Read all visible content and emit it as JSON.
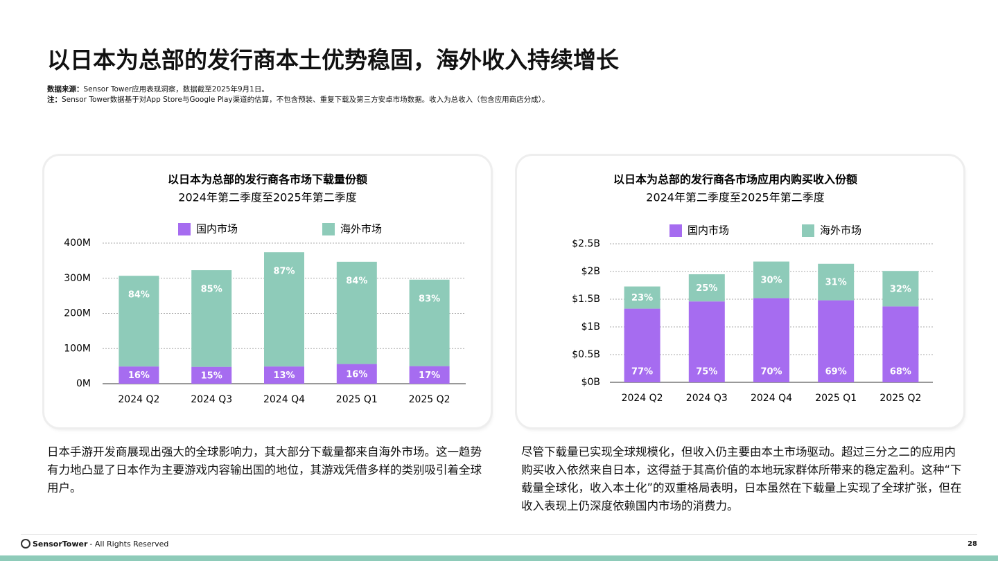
{
  "header": {
    "title": "以日本为总部的发行商本土优势稳固，海外收入持续增长",
    "source_label": "数据来源：",
    "source": "Sensor Tower应用表现洞察，数据截至2025年9月1日。",
    "note_label": "注：",
    "note": "Sensor Tower数据基于对App Store与Google Play渠道的估算，不包含预装、重复下载及第三方安卓市场数据。收入为总收入（包含应用商店分成）。"
  },
  "chart_data": [
    {
      "type": "bar",
      "stacked": true,
      "title": "以日本为总部的发行商各市场下载量份额",
      "subtitle": "2024年第二季度至2025年第二季度",
      "categories": [
        "2024 Q2",
        "2024 Q3",
        "2024 Q4",
        "2025 Q1",
        "2025 Q2"
      ],
      "series": [
        {
          "name": "国内市场",
          "color": "#a66cf0",
          "values": [
            49,
            48,
            49,
            56,
            50
          ],
          "share_labels": [
            "16%",
            "15%",
            "13%",
            "16%",
            "17%"
          ]
        },
        {
          "name": "海外市场",
          "color": "#8ecbb9",
          "values": [
            258,
            275,
            325,
            291,
            246
          ],
          "share_labels": [
            "84%",
            "85%",
            "87%",
            "84%",
            "83%"
          ]
        }
      ],
      "ylim": [
        0,
        400
      ],
      "yticks": [
        {
          "value": 0,
          "label": "0M"
        },
        {
          "value": 100,
          "label": "100M"
        },
        {
          "value": 200,
          "label": "200M"
        },
        {
          "value": 300,
          "label": "300M"
        },
        {
          "value": 400,
          "label": "400M"
        }
      ],
      "grid": true
    },
    {
      "type": "bar",
      "stacked": true,
      "title": "以日本为总部的发行商各市场应用内购买收入份额",
      "subtitle": "2024年第二季度至2025年第二季度",
      "categories": [
        "2024 Q2",
        "2024 Q3",
        "2024 Q4",
        "2025 Q1",
        "2025 Q2"
      ],
      "series": [
        {
          "name": "国内市场",
          "color": "#a66cf0",
          "values": [
            1.33,
            1.46,
            1.52,
            1.48,
            1.37
          ],
          "share_labels": [
            "77%",
            "75%",
            "70%",
            "69%",
            "68%"
          ]
        },
        {
          "name": "海外市场",
          "color": "#8ecbb9",
          "values": [
            0.4,
            0.49,
            0.66,
            0.66,
            0.64
          ],
          "share_labels": [
            "23%",
            "25%",
            "30%",
            "31%",
            "32%"
          ]
        }
      ],
      "ylim": [
        0,
        2.5
      ],
      "yticks": [
        {
          "value": 0,
          "label": "$0B"
        },
        {
          "value": 0.5,
          "label": "$0.5B"
        },
        {
          "value": 1,
          "label": "$1B"
        },
        {
          "value": 1.5,
          "label": "$1.5B"
        },
        {
          "value": 2,
          "label": "$2B"
        },
        {
          "value": 2.5,
          "label": "$2.5B"
        }
      ],
      "grid": true
    }
  ],
  "paragraphs": [
    "日本手游开发商展现出强大的全球影响力，其大部分下载量都来自海外市场。这一趋势有力地凸显了日本作为主要游戏内容输出国的地位，其游戏凭借多样的类别吸引着全球用户。",
    "尽管下载量已实现全球规模化，但收入仍主要由本土市场驱动。超过三分之二的应用内购买收入依然来自日本，这得益于其高价值的本地玩家群体所带来的稳定盈利。这种“下载量全球化，收入本土化”的双重格局表明，日本虽然在下载量上实现了全球扩张，但在收入表现上仍深度依赖国内市场的消费力。"
  ],
  "footer": {
    "brand": "SensorTower",
    "rights": "- All Rights Reserved",
    "page": 28
  }
}
